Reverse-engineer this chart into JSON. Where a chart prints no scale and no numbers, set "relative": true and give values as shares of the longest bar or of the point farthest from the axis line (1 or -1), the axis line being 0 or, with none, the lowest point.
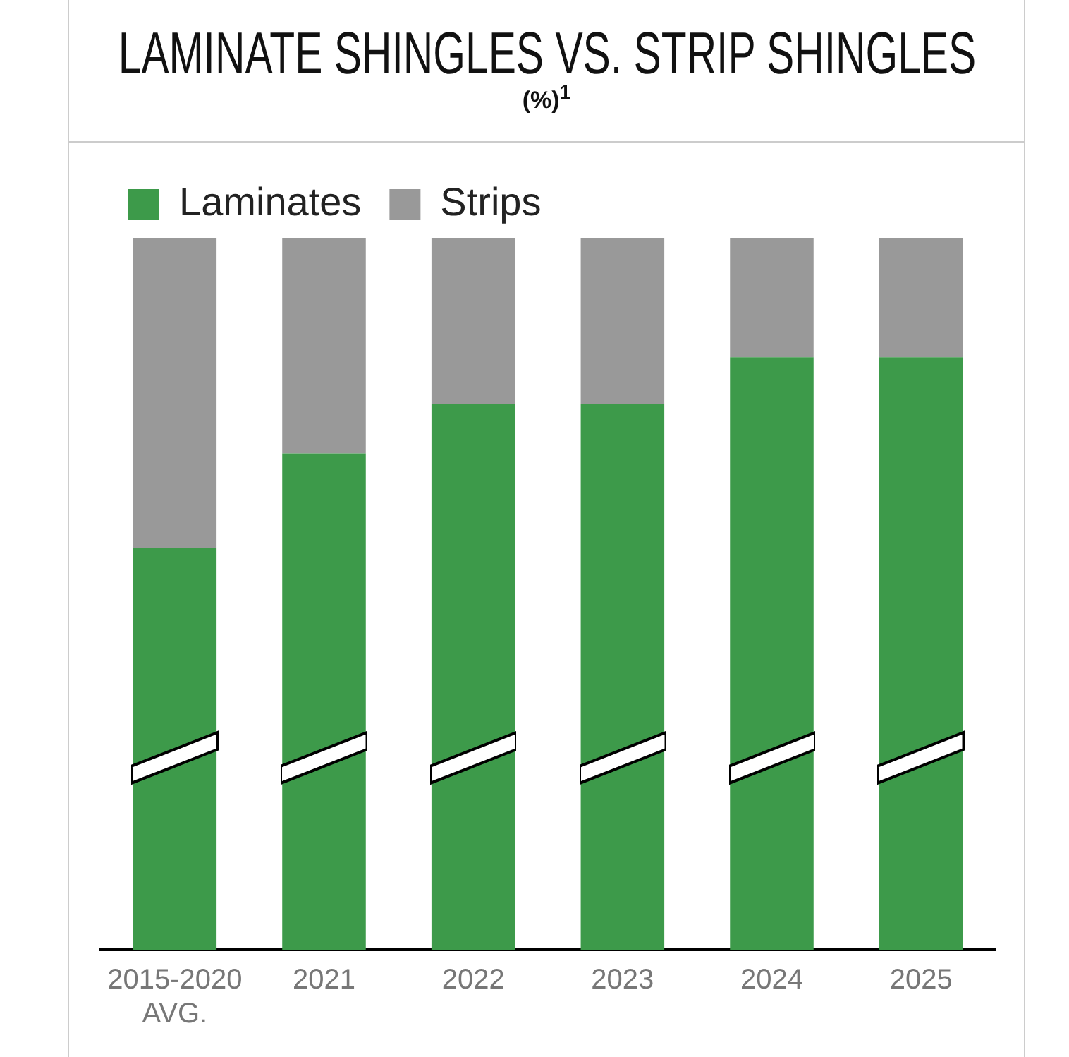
{
  "chart_data": {
    "type": "bar",
    "title": "LAMINATE SHINGLES VS. STRIP SHINGLES",
    "subtitle": "(%)$^{1}$",
    "categories": [
      "2015-2020\nAVG.",
      "2021",
      "2022",
      "2023",
      "2024",
      "2025"
    ],
    "series": [
      {
        "name": "Laminates",
        "color": "#3d9a4a",
        "values": [
          0.565,
          0.698,
          0.767,
          0.767,
          0.833,
          0.833
        ]
      },
      {
        "name": "Strips",
        "color": "#999999",
        "values": [
          0.435,
          0.302,
          0.233,
          0.233,
          0.167,
          0.167
        ]
      }
    ],
    "stacked": true,
    "relative": true,
    "grid": false,
    "legend": "top left"
  }
}
